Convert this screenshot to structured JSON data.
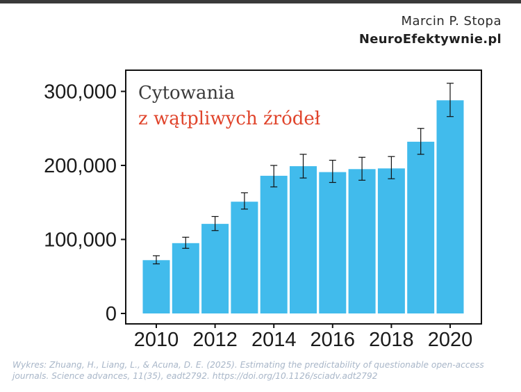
{
  "header": {
    "author": "Marcin P. Stopa",
    "site": "NeuroEfektywnie.pl"
  },
  "chart_title": {
    "line1": "Cytowania",
    "line2": "z wątpliwych źródeł"
  },
  "source_text": "Wykres: Zhuang, H., Liang, L., & Acuna, D. E. (2025). Estimating the predictability of questionable open-access journals. Science advances, 11(35), eadt2792. https://doi.org/10.1126/sciadv.adt2792",
  "colors": {
    "bar": "#41bbec",
    "title_accent": "#e0442b",
    "source": "#a8b6c8"
  },
  "chart_data": {
    "type": "bar",
    "title": "Cytowania z wątpliwych źródeł",
    "xlabel": "",
    "ylabel": "",
    "x": [
      2010,
      2011,
      2012,
      2013,
      2014,
      2015,
      2016,
      2017,
      2018,
      2019,
      2020
    ],
    "values": [
      72000,
      95000,
      121000,
      151000,
      186000,
      199000,
      191000,
      195000,
      196000,
      232000,
      288000
    ],
    "error_low": [
      67000,
      88000,
      112000,
      141000,
      171000,
      183000,
      177000,
      180000,
      182000,
      215000,
      266000
    ],
    "error_high": [
      78000,
      103000,
      131000,
      163000,
      200000,
      215000,
      207000,
      211000,
      212000,
      250000,
      311000
    ],
    "ylim": [
      0,
      330000
    ],
    "yticks": [
      0,
      100000,
      200000,
      300000
    ],
    "ytick_labels": [
      "0",
      "100,000",
      "200,000",
      "300,000"
    ],
    "xticks": [
      2010,
      2012,
      2014,
      2016,
      2018,
      2020
    ],
    "xtick_labels": [
      "2010",
      "2012",
      "2014",
      "2016",
      "2018",
      "2020"
    ],
    "grid": false,
    "legend": "none"
  }
}
